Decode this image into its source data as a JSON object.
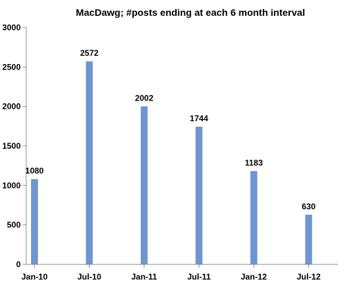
{
  "chart_data": {
    "type": "bar",
    "title": "MacDawg; #posts ending at each 6 month interval",
    "xlabel": "",
    "ylabel": "",
    "categories": [
      "Jan-10",
      "Jul-10",
      "Jan-11",
      "Jul-11",
      "Jan-12",
      "Jul-12"
    ],
    "values": [
      1080,
      2572,
      2002,
      1744,
      1183,
      630
    ],
    "ylim": [
      0,
      3000
    ],
    "yticks": [
      0,
      500,
      1000,
      1500,
      2000,
      2500,
      3000
    ],
    "grid": false,
    "legend": "none",
    "bar_color": "#6f96cf",
    "axis_color": "#8c8c8c"
  }
}
